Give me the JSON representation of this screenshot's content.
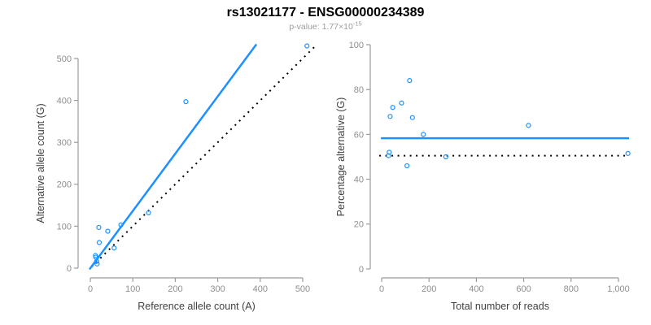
{
  "header": {
    "title": "rs13021177 - ENSG00000234389",
    "pvalue_prefix": "p-value: 1.77×10",
    "pvalue_exponent": "-15"
  },
  "colors": {
    "accent_blue": "#1E90FF",
    "line_black": "#000000",
    "tick_label": "#8e8e8e",
    "axis_title": "#404040",
    "axis_line": "#9b9b9b",
    "background": "#ffffff"
  },
  "chart_data": [
    {
      "type": "scatter",
      "name": "allele-count-scatter",
      "xlabel": "Reference allele count (A)",
      "ylabel": "Alternative allele count (G)",
      "xlim": [
        0,
        500
      ],
      "ylim": [
        0,
        500
      ],
      "xticks": [
        0,
        100,
        200,
        300,
        400,
        500
      ],
      "xtick_labels": [
        "0",
        "100",
        "200",
        "300",
        "400",
        "500"
      ],
      "yticks": [
        0,
        100,
        200,
        300,
        400,
        500
      ],
      "ytick_labels": [
        "0",
        "100",
        "200",
        "300",
        "400",
        "500"
      ],
      "grid": false,
      "legend": null,
      "point_color": "#1E90FF",
      "points": [
        [
          12,
          30
        ],
        [
          13,
          26
        ],
        [
          15,
          16
        ],
        [
          16,
          10
        ],
        [
          20,
          97
        ],
        [
          21,
          61
        ],
        [
          41,
          88
        ],
        [
          56,
          48
        ],
        [
          72,
          103
        ],
        [
          137,
          132
        ],
        [
          225,
          397
        ],
        [
          510,
          530
        ]
      ],
      "lines": [
        {
          "name": "identity-line",
          "style": "dotted",
          "color": "#000000",
          "width": 2,
          "points": [
            [
              3,
              3
            ],
            [
              527,
              527
            ]
          ]
        },
        {
          "name": "regression-line",
          "style": "solid",
          "color": "#1E90FF",
          "width": 2.5,
          "points": [
            [
              -2,
              -3
            ],
            [
              391,
              534
            ]
          ]
        }
      ]
    },
    {
      "type": "scatter",
      "name": "percentage-scatter",
      "xlabel": "Total number of reads",
      "ylabel": "Percentage alternative (G)",
      "xlim": [
        0,
        1000
      ],
      "ylim": [
        0,
        100
      ],
      "xticks": [
        0,
        200,
        400,
        600,
        800,
        1000
      ],
      "xtick_labels": [
        "0",
        "200",
        "400",
        "600",
        "800",
        "1,000"
      ],
      "yticks": [
        0,
        20,
        40,
        60,
        80,
        100
      ],
      "ytick_labels": [
        "0",
        "20",
        "40",
        "60",
        "80",
        "100"
      ],
      "grid": false,
      "legend": null,
      "point_color": "#1E90FF",
      "points": [
        [
          29,
          50.5
        ],
        [
          32,
          52
        ],
        [
          36,
          68
        ],
        [
          47,
          72
        ],
        [
          84,
          74
        ],
        [
          107,
          46
        ],
        [
          118,
          84
        ],
        [
          130,
          67.5
        ],
        [
          176,
          60
        ],
        [
          271,
          50
        ],
        [
          620,
          64
        ],
        [
          1040,
          51.5
        ]
      ],
      "lines": [
        {
          "name": "null-percentage-line",
          "style": "dotted",
          "color": "#000000",
          "width": 2,
          "y": 50.5,
          "x_range": [
            -10,
            1045
          ]
        },
        {
          "name": "mean-percentage-line",
          "style": "solid",
          "color": "#1E90FF",
          "width": 2.5,
          "y": 58.3,
          "x_range": [
            -3,
            1045
          ]
        }
      ]
    }
  ]
}
